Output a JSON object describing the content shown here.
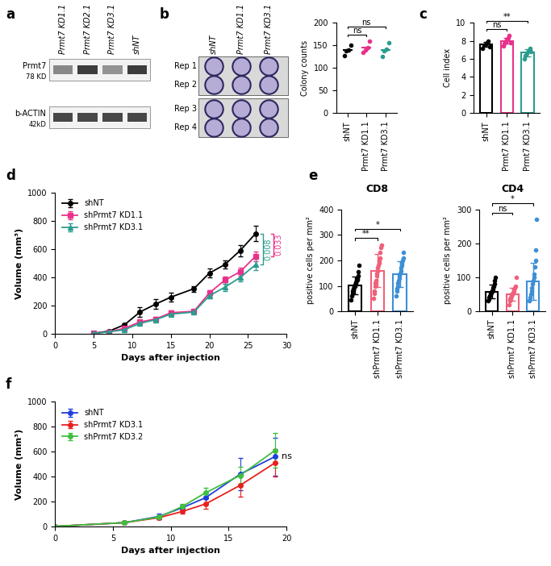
{
  "panel_labels": [
    "a",
    "b",
    "c",
    "d",
    "e",
    "f"
  ],
  "blot": {
    "lanes": [
      "Prmt7 KD1.1",
      "Prmt7 KD2.1",
      "Prmt7 KD3.1",
      "shNT"
    ],
    "bands": [
      {
        "name": "Prmt7",
        "size": "78 KD",
        "intensity": [
          0.55,
          0.9,
          0.5,
          0.9
        ]
      },
      {
        "name": "b-ACTIN",
        "size": "42kD",
        "intensity": [
          0.85,
          0.85,
          0.85,
          0.85
        ]
      }
    ]
  },
  "plates": {
    "columns": [
      "shNT",
      "Prmt7 KD1.1",
      "Prmt7 KD3.1"
    ],
    "rows": [
      "Rep 1",
      "Rep 2",
      "Rep 3",
      "Rep 4"
    ]
  },
  "chart_data": [
    {
      "type": "scatter",
      "categories": [
        "shNT",
        "Prmt7 KD1.1",
        "Prmt7 KD3.1"
      ],
      "values": [
        139,
        145,
        140
      ],
      "points": [
        [
          128,
          138,
          140,
          150
        ],
        [
          135,
          140,
          145,
          160
        ],
        [
          125,
          138,
          142,
          155
        ]
      ],
      "colors": [
        "#000000",
        "#e8318a",
        "#2a9d8f"
      ],
      "ylabel": "Colony counts",
      "ylim": [
        0,
        200
      ],
      "yticks": [
        0,
        50,
        100,
        150,
        200
      ],
      "comparisons": [
        {
          "groups": [
            "shNT",
            "Prmt7 KD1.1"
          ],
          "label": "ns"
        },
        {
          "groups": [
            "shNT",
            "Prmt7 KD3.1"
          ],
          "label": "ns"
        }
      ]
    },
    {
      "type": "bar",
      "categories": [
        "shNT",
        "Prmt7 KD1.1",
        "Prmt7 KD3.1"
      ],
      "values": [
        7.6,
        8.0,
        6.7
      ],
      "errors": [
        0.3,
        0.35,
        0.4
      ],
      "points": [
        [
          7.2,
          7.5,
          7.6,
          7.8,
          8.0,
          7.3
        ],
        [
          7.4,
          7.7,
          7.9,
          8.1,
          8.3,
          8.6,
          7.8
        ],
        [
          6.0,
          6.4,
          6.6,
          6.9,
          7.2,
          6.8
        ]
      ],
      "colors": [
        "#000000",
        "#e8318a",
        "#2a9d8f"
      ],
      "ylabel": "Cell index",
      "ylim": [
        0,
        10
      ],
      "yticks": [
        0,
        2,
        4,
        6,
        8,
        10
      ],
      "comparisons": [
        {
          "groups": [
            "shNT",
            "Prmt7 KD1.1"
          ],
          "label": "ns"
        },
        {
          "groups": [
            "shNT",
            "Prmt7 KD3.1"
          ],
          "label": "**"
        }
      ]
    },
    {
      "type": "line",
      "x": [
        5,
        7,
        9,
        11,
        13,
        15,
        18,
        20,
        22,
        24,
        26
      ],
      "series": [
        {
          "name": "shNT",
          "color": "#000000",
          "marker": "circle",
          "values": [
            5,
            20,
            65,
            155,
            210,
            260,
            320,
            430,
            490,
            590,
            710
          ],
          "errors": [
            2,
            5,
            10,
            35,
            35,
            30,
            20,
            30,
            30,
            40,
            55
          ]
        },
        {
          "name": "shPrmt7 KD1.1",
          "color": "#e8318a",
          "marker": "square",
          "values": [
            5,
            15,
            40,
            85,
            105,
            150,
            160,
            290,
            380,
            440,
            550
          ],
          "errors": [
            2,
            4,
            8,
            15,
            15,
            15,
            10,
            20,
            25,
            30,
            35
          ]
        },
        {
          "name": "shPrmt7 KD3.1",
          "color": "#2a9d8f",
          "marker": "triangle",
          "values": [
            5,
            15,
            30,
            75,
            100,
            140,
            155,
            270,
            330,
            400,
            490
          ],
          "errors": [
            2,
            4,
            6,
            12,
            15,
            15,
            10,
            20,
            25,
            30,
            40
          ]
        }
      ],
      "xlabel": "Days after injection",
      "ylabel": "Volume (mm³)",
      "xlim": [
        0,
        30
      ],
      "xticks": [
        0,
        5,
        10,
        15,
        20,
        25,
        30
      ],
      "ylim": [
        0,
        1000
      ],
      "yticks": [
        0,
        200,
        400,
        600,
        800,
        1000
      ],
      "legend": "upper left",
      "comparisons": [
        {
          "groups": [
            "shNT",
            "shPrmt7 KD3.1"
          ],
          "label": "0.008"
        },
        {
          "groups": [
            "shNT",
            "shPrmt7 KD1.1"
          ],
          "label": "0.033"
        }
      ]
    },
    {
      "type": "bar",
      "title": "CD8",
      "categories": [
        "shNT",
        "shPrmt7 KD1.1",
        "shPrmt7 KD3.1"
      ],
      "values": [
        103,
        160,
        145
      ],
      "errors": [
        35,
        65,
        50
      ],
      "points": [
        [
          45,
          60,
          70,
          80,
          85,
          90,
          95,
          100,
          100,
          105,
          110,
          115,
          120,
          125,
          130,
          140,
          155,
          180
        ],
        [
          50,
          70,
          80,
          100,
          110,
          120,
          140,
          150,
          160,
          170,
          180,
          190,
          200,
          210,
          230,
          250,
          260
        ],
        [
          60,
          80,
          90,
          100,
          110,
          120,
          130,
          140,
          150,
          160,
          170,
          180,
          190,
          200,
          210,
          230
        ]
      ],
      "colors": [
        "#000000",
        "#f0607a",
        "#3d8fd6"
      ],
      "ylabel": "positive cells per mm²",
      "ylim": [
        0,
        400
      ],
      "yticks": [
        0,
        100,
        200,
        300,
        400
      ],
      "comparisons": [
        {
          "groups": [
            "shNT",
            "shPrmt7 KD1.1"
          ],
          "label": "**"
        },
        {
          "groups": [
            "shNT",
            "shPrmt7 KD3.1"
          ],
          "label": "*"
        }
      ]
    },
    {
      "type": "bar",
      "title": "CD4",
      "categories": [
        "shNT",
        "shPrmt7 KD1.1",
        "shPrmt7 KD3.1"
      ],
      "values": [
        58,
        50,
        88
      ],
      "errors": [
        20,
        20,
        55
      ],
      "points": [
        [
          30,
          35,
          40,
          45,
          50,
          55,
          55,
          60,
          60,
          65,
          70,
          75,
          80,
          90,
          100
        ],
        [
          20,
          30,
          35,
          40,
          45,
          50,
          50,
          55,
          60,
          65,
          70,
          75,
          100
        ],
        [
          30,
          40,
          50,
          60,
          70,
          80,
          90,
          100,
          110,
          130,
          150,
          180,
          270
        ]
      ],
      "colors": [
        "#000000",
        "#f0607a",
        "#3d8fd6"
      ],
      "ylabel": "positive cells per mm²",
      "ylim": [
        0,
        300
      ],
      "yticks": [
        0,
        100,
        200,
        300
      ],
      "comparisons": [
        {
          "groups": [
            "shNT",
            "shPrmt7 KD1.1"
          ],
          "label": "ns"
        },
        {
          "groups": [
            "shNT",
            "shPrmt7 KD3.1"
          ],
          "label": "*"
        }
      ]
    },
    {
      "type": "line",
      "x": [
        0,
        6,
        9,
        11,
        13,
        16,
        19
      ],
      "series": [
        {
          "name": "shNT",
          "color": "#1f3fe0",
          "marker": "circle",
          "values": [
            0,
            30,
            80,
            150,
            230,
            420,
            560
          ],
          "errors": [
            0,
            5,
            20,
            25,
            40,
            130,
            150
          ]
        },
        {
          "name": "shPrmt7 KD3.1",
          "color": "#e8201e",
          "marker": "circle",
          "values": [
            0,
            30,
            70,
            120,
            180,
            330,
            510
          ],
          "errors": [
            0,
            5,
            15,
            20,
            40,
            90,
            110
          ]
        },
        {
          "name": "shPrmt7 KD3.2",
          "color": "#3fbf3f",
          "marker": "circle",
          "values": [
            0,
            30,
            75,
            160,
            270,
            410,
            610
          ],
          "errors": [
            0,
            5,
            15,
            20,
            40,
            70,
            140
          ]
        }
      ],
      "xlabel": "Days after injection",
      "ylabel": "Volume (mm³)",
      "xlim": [
        0,
        20
      ],
      "xticks": [
        0,
        5,
        10,
        15,
        20
      ],
      "ylim": [
        0,
        1000
      ],
      "yticks": [
        0,
        200,
        400,
        600,
        800,
        1000
      ],
      "legend": "upper left",
      "annotations": [
        {
          "text": "ns"
        }
      ]
    }
  ]
}
